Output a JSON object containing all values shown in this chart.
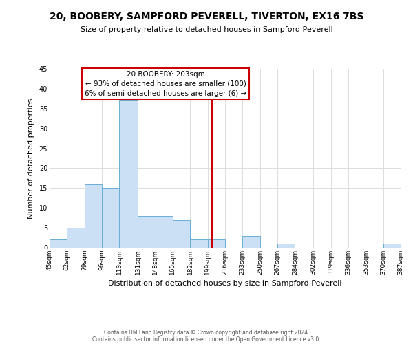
{
  "title": "20, BOOBERY, SAMPFORD PEVERELL, TIVERTON, EX16 7BS",
  "subtitle": "Size of property relative to detached houses in Sampford Peverell",
  "xlabel": "Distribution of detached houses by size in Sampford Peverell",
  "ylabel": "Number of detached properties",
  "bar_color": "#cce0f5",
  "bar_edge_color": "#6baed6",
  "annotation_line_color": "#cc0000",
  "annotation_box_edge": "#cc0000",
  "annotation_text_line1": "20 BOOBERY: 203sqm",
  "annotation_text_line2": "← 93% of detached houses are smaller (100)",
  "annotation_text_line3": "6% of semi-detached houses are larger (6) →",
  "property_size": 203,
  "bin_edges": [
    45,
    62,
    79,
    96,
    113,
    131,
    148,
    165,
    182,
    199,
    216,
    233,
    250,
    267,
    284,
    302,
    319,
    336,
    353,
    370,
    387
  ],
  "bin_counts": [
    2,
    5,
    16,
    15,
    37,
    8,
    8,
    7,
    2,
    2,
    0,
    3,
    0,
    1,
    0,
    0,
    0,
    0,
    0,
    1
  ],
  "tick_labels": [
    "45sqm",
    "62sqm",
    "79sqm",
    "96sqm",
    "113sqm",
    "131sqm",
    "148sqm",
    "165sqm",
    "182sqm",
    "199sqm",
    "216sqm",
    "233sqm",
    "250sqm",
    "267sqm",
    "284sqm",
    "302sqm",
    "319sqm",
    "336sqm",
    "353sqm",
    "370sqm",
    "387sqm"
  ],
  "ylim": [
    0,
    45
  ],
  "yticks": [
    0,
    5,
    10,
    15,
    20,
    25,
    30,
    35,
    40,
    45
  ],
  "footer_line1": "Contains HM Land Registry data © Crown copyright and database right 2024.",
  "footer_line2": "Contains public sector information licensed under the Open Government Licence v3.0.",
  "background_color": "#ffffff",
  "grid_color": "#dddddd",
  "title_fontsize": 10,
  "subtitle_fontsize": 8,
  "ylabel_fontsize": 8,
  "xlabel_fontsize": 8,
  "tick_fontsize": 6.5,
  "annotation_fontsize": 7.5,
  "footer_fontsize": 5.5
}
